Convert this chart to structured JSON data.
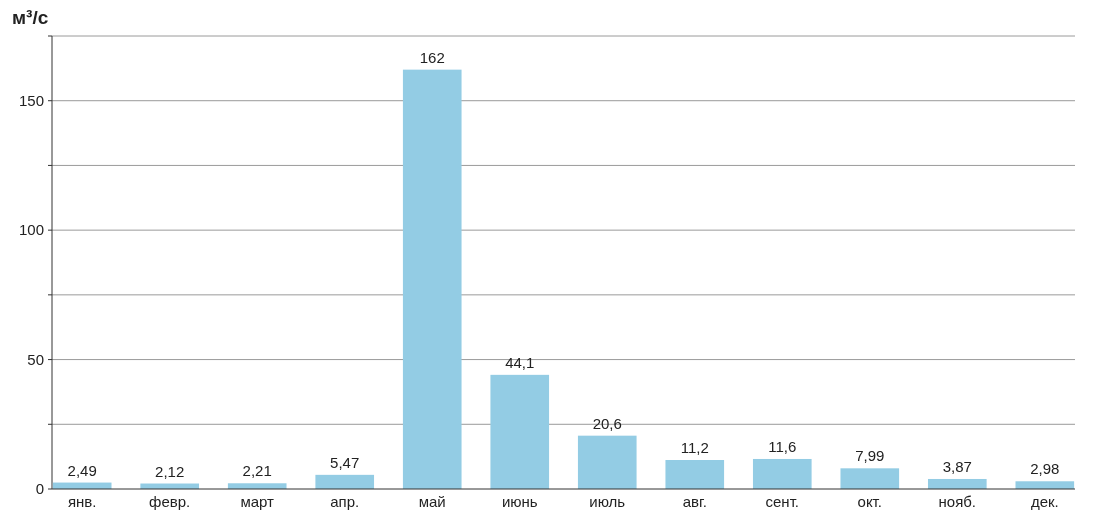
{
  "chart_data": {
    "type": "bar",
    "ylabel": "м³/с",
    "categories": [
      "янв.",
      "февр.",
      "март",
      "апр.",
      "май",
      "июнь",
      "июль",
      "авг.",
      "сент.",
      "окт.",
      "нояб.",
      "дек."
    ],
    "values": [
      2.49,
      2.12,
      2.21,
      5.47,
      162,
      44.1,
      20.6,
      11.2,
      11.6,
      7.99,
      3.87,
      2.98
    ],
    "value_labels": [
      "2,49",
      "2,12",
      "2,21",
      "5,47",
      "162",
      "44,1",
      "20,6",
      "11,2",
      "11,6",
      "7,99",
      "3,87",
      "2,98"
    ],
    "color": "#93cce4",
    "ylim": [
      0,
      175
    ],
    "yticks": [
      0,
      {
        "value": 25,
        "label": null
      },
      50,
      {
        "value": 75,
        "label": null
      },
      100,
      {
        "value": 125,
        "label": null
      },
      150,
      {
        "value": 175,
        "label": null
      }
    ],
    "grid": "y"
  }
}
